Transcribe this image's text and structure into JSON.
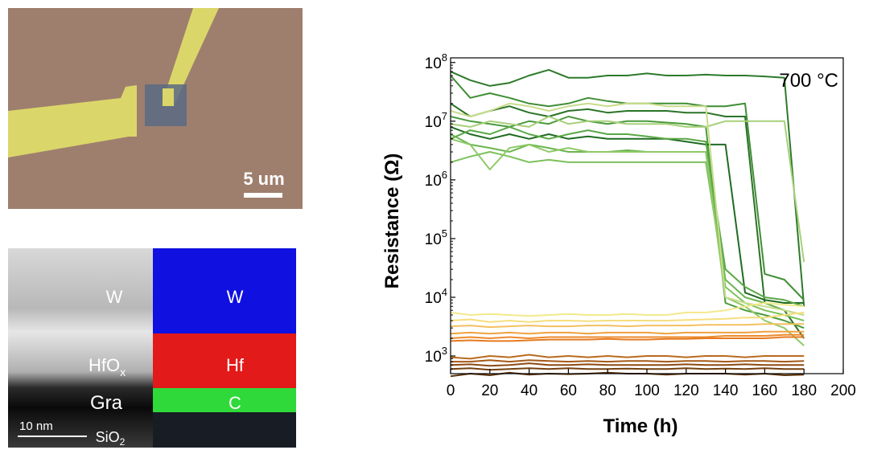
{
  "optical_image": {
    "scale_bar_label": "5 um",
    "colors": {
      "substrate": "#9e7f6e",
      "electrode": "#dbd66a",
      "flake": "#5b6a84"
    }
  },
  "tem_image": {
    "labels": {
      "w": "W",
      "hfox_main": "HfO",
      "hfox_sub": "x",
      "gra": "Gra",
      "sio2_main": "SiO",
      "sio2_sub": "2"
    },
    "scale_bar_label": "10 nm",
    "eds_labels": {
      "w": "W",
      "hf": "Hf",
      "c": "C"
    },
    "colors": {
      "w": "#1010e0",
      "hf": "#e21a1a",
      "c": "#2fd93a"
    }
  },
  "chart_data": {
    "type": "line",
    "annotation": "700 °C",
    "xlabel": "Time (h)",
    "ylabel": "Resistance (Ω)",
    "xlim": [
      0,
      200
    ],
    "ylim": [
      500,
      120000000
    ],
    "y_scale": "log",
    "grid": false,
    "x_ticks": [
      0,
      20,
      40,
      60,
      80,
      100,
      120,
      140,
      160,
      180,
      200
    ],
    "y_ticks": [
      {
        "value": 1000,
        "base": "10",
        "exp": "3"
      },
      {
        "value": 10000,
        "base": "10",
        "exp": "4"
      },
      {
        "value": 100000,
        "base": "10",
        "exp": "5"
      },
      {
        "value": 1000000,
        "base": "10",
        "exp": "6"
      },
      {
        "value": 10000000,
        "base": "10",
        "exp": "7"
      },
      {
        "value": 100000000,
        "base": "10",
        "exp": "8"
      }
    ],
    "series": [
      {
        "color": "#2d7a2a",
        "x": [
          0,
          10,
          20,
          30,
          40,
          50,
          60,
          70,
          80,
          90,
          100,
          110,
          120,
          130,
          140,
          150,
          160,
          170,
          180
        ],
        "y": [
          70000000,
          50000000,
          40000000,
          45000000,
          60000000,
          75000000,
          55000000,
          55000000,
          60000000,
          60000000,
          65000000,
          60000000,
          60000000,
          62000000,
          60000000,
          60000000,
          58000000,
          55000000,
          7000
        ]
      },
      {
        "color": "#3f8e35",
        "x": [
          0,
          10,
          20,
          30,
          40,
          50,
          60,
          70,
          80,
          90,
          100,
          110,
          120,
          130,
          140,
          150,
          160,
          170,
          180
        ],
        "y": [
          60000000,
          25000000,
          30000000,
          25000000,
          20000000,
          18000000,
          20000000,
          25000000,
          22000000,
          20000000,
          20000000,
          20000000,
          20000000,
          18000000,
          18000000,
          20000000,
          25000,
          20000,
          9000
        ]
      },
      {
        "color": "#2a7326",
        "x": [
          0,
          10,
          20,
          30,
          40,
          50,
          60,
          70,
          80,
          90,
          100,
          110,
          120,
          130,
          140,
          150,
          160,
          170,
          180
        ],
        "y": [
          20000000,
          12000000,
          15000000,
          18000000,
          14000000,
          12000000,
          15000000,
          16000000,
          14000000,
          15000000,
          15000000,
          15000000,
          14000000,
          14000000,
          12000000,
          12000000,
          8000,
          6000,
          2000
        ]
      },
      {
        "color": "#4a9a3c",
        "x": [
          0,
          10,
          20,
          30,
          40,
          50,
          60,
          70,
          80,
          90,
          100,
          110,
          120,
          130,
          140,
          150,
          160,
          170,
          180
        ],
        "y": [
          12000000,
          10000000,
          9000000,
          8000000,
          10000000,
          9000000,
          12000000,
          10000000,
          9000000,
          10000000,
          10000000,
          9500000,
          9000000,
          8000000,
          8000,
          6000,
          5000,
          4000,
          3000
        ]
      },
      {
        "color": "#1f6b22",
        "x": [
          0,
          10,
          20,
          30,
          40,
          50,
          60,
          70,
          80,
          90,
          100,
          110,
          120,
          130,
          140,
          150,
          160,
          170,
          180
        ],
        "y": [
          8000000,
          6000000,
          5000000,
          6000000,
          5000000,
          6000000,
          5000000,
          5500000,
          5000000,
          5000000,
          5000000,
          5000000,
          4500000,
          4000000,
          4000000,
          12000,
          9000,
          8000,
          8000
        ]
      },
      {
        "color": "#5aa846",
        "x": [
          0,
          10,
          20,
          30,
          40,
          50,
          60,
          70,
          80,
          90,
          100,
          110,
          120,
          130,
          140,
          150,
          160,
          170,
          180
        ],
        "y": [
          5000000,
          7000000,
          6000000,
          8000000,
          6000000,
          5000000,
          6000000,
          7000000,
          6000000,
          6000000,
          5500000,
          5000000,
          5000000,
          4500000,
          30000,
          15000,
          10000,
          9000,
          7000
        ]
      },
      {
        "color": "#6bb54f",
        "x": [
          0,
          10,
          20,
          30,
          40,
          50,
          60,
          70,
          80,
          90,
          100,
          110,
          120,
          130,
          140,
          150,
          160,
          170,
          180
        ],
        "y": [
          6000000,
          4000000,
          3500000,
          3000000,
          4000000,
          3500000,
          3000000,
          3000000,
          3000000,
          3200000,
          3000000,
          3000000,
          3000000,
          3000000,
          20000,
          10000,
          8000,
          6000,
          5000
        ]
      },
      {
        "color": "#7cc15a",
        "x": [
          0,
          10,
          20,
          30,
          40,
          50,
          60,
          70,
          80,
          90,
          100,
          110,
          120,
          130,
          140,
          150,
          160,
          170,
          180
        ],
        "y": [
          2000000,
          2500000,
          3000000,
          2500000,
          2000000,
          2200000,
          2000000,
          2000000,
          2000000,
          2000000,
          2000000,
          2000000,
          2000000,
          2000000,
          15000,
          8000,
          6000,
          5000,
          4000
        ]
      },
      {
        "color": "#8fc968",
        "x": [
          0,
          10,
          20,
          30,
          40,
          50,
          60,
          70,
          80,
          90,
          100,
          110,
          120,
          130,
          140,
          150,
          160,
          170,
          180
        ],
        "y": [
          5000000,
          4000000,
          1500000,
          3500000,
          4000000,
          3000000,
          3500000,
          3000000,
          3000000,
          3000000,
          3000000,
          3000000,
          3000000,
          3000000,
          10000,
          7000,
          4000,
          3000,
          1500
        ]
      },
      {
        "color": "#a7d07a",
        "x": [
          0,
          10,
          20,
          30,
          40,
          50,
          60,
          70,
          80,
          90,
          100,
          110,
          120,
          130,
          140,
          150,
          160,
          170,
          180
        ],
        "y": [
          9000000,
          8000000,
          10000000,
          9000000,
          8000000,
          12000000,
          9000000,
          10000000,
          10000000,
          9000000,
          9000000,
          9000000,
          8000000,
          8000000,
          10000000,
          10000000,
          10000000,
          10000000,
          40000
        ]
      },
      {
        "color": "#c9dc8c",
        "x": [
          0,
          10,
          20,
          30,
          40,
          50,
          60,
          70,
          80,
          90,
          100,
          110,
          120,
          130,
          140,
          150,
          160,
          170,
          180
        ],
        "y": [
          15000000,
          12000000,
          15000000,
          20000000,
          18000000,
          15000000,
          18000000,
          20000000,
          18000000,
          20000000,
          20000000,
          18000000,
          18000000,
          18000000,
          10000,
          8000,
          7000,
          6000,
          5000
        ]
      },
      {
        "color": "#f3e98c",
        "x": [
          0,
          10,
          20,
          30,
          40,
          50,
          60,
          70,
          80,
          90,
          100,
          110,
          120,
          130,
          140,
          150,
          160,
          170,
          180
        ],
        "y": [
          5500,
          5000,
          5200,
          5000,
          4800,
          5000,
          5200,
          5000,
          5000,
          5200,
          5000,
          5000,
          5500,
          5500,
          6000,
          7000,
          8000,
          7500,
          7000
        ]
      },
      {
        "color": "#f6de7e",
        "x": [
          0,
          10,
          20,
          30,
          40,
          50,
          60,
          70,
          80,
          90,
          100,
          110,
          120,
          130,
          140,
          150,
          160,
          170,
          180
        ],
        "y": [
          4000,
          4200,
          3800,
          4000,
          3800,
          4000,
          4000,
          3900,
          4000,
          4000,
          4000,
          4000,
          4100,
          4200,
          4300,
          4500,
          4500,
          5000,
          5500
        ]
      },
      {
        "color": "#f3c060",
        "x": [
          0,
          10,
          20,
          30,
          40,
          50,
          60,
          70,
          80,
          90,
          100,
          110,
          120,
          130,
          140,
          150,
          160,
          170,
          180
        ],
        "y": [
          3200,
          3300,
          3100,
          3200,
          3300,
          3200,
          3200,
          3300,
          3300,
          3200,
          3300,
          3300,
          3300,
          3400,
          3400,
          3400,
          3500,
          3500,
          3500
        ]
      },
      {
        "color": "#f0a040",
        "x": [
          0,
          10,
          20,
          30,
          40,
          50,
          60,
          70,
          80,
          90,
          100,
          110,
          120,
          130,
          140,
          150,
          160,
          170,
          180
        ],
        "y": [
          2400,
          2500,
          2400,
          2500,
          2400,
          2500,
          2500,
          2400,
          2500,
          2500,
          2500,
          2400,
          2500,
          2500,
          2500,
          2500,
          2600,
          2600,
          2600
        ]
      },
      {
        "color": "#ec8a2c",
        "x": [
          0,
          10,
          20,
          30,
          40,
          50,
          60,
          70,
          80,
          90,
          100,
          110,
          120,
          130,
          140,
          150,
          160,
          170,
          180
        ],
        "y": [
          2000,
          2100,
          2000,
          2100,
          2000,
          2100,
          2100,
          2100,
          2100,
          2100,
          2100,
          2100,
          2100,
          2100,
          2200,
          2200,
          2200,
          2300,
          2300
        ]
      },
      {
        "color": "#e67a20",
        "x": [
          0,
          10,
          20,
          30,
          40,
          50,
          60,
          70,
          80,
          90,
          100,
          110,
          120,
          130,
          140,
          150,
          160,
          170,
          180
        ],
        "y": [
          1800,
          1850,
          1800,
          1800,
          1850,
          1900,
          1900,
          1900,
          1950,
          1900,
          1900,
          1950,
          1950,
          2000,
          2000,
          2000,
          2000,
          2100,
          2100
        ]
      },
      {
        "color": "#b96a1e",
        "x": [
          0,
          10,
          20,
          30,
          40,
          50,
          60,
          70,
          80,
          90,
          100,
          110,
          120,
          130,
          140,
          150,
          160,
          170,
          180
        ],
        "y": [
          950,
          900,
          1000,
          950,
          1050,
          950,
          1000,
          950,
          1000,
          950,
          1000,
          1000,
          950,
          1000,
          1000,
          950,
          1000,
          1000,
          1000
        ]
      },
      {
        "color": "#a65a18",
        "x": [
          0,
          10,
          20,
          30,
          40,
          50,
          60,
          70,
          80,
          90,
          100,
          110,
          120,
          130,
          140,
          150,
          160,
          170,
          180
        ],
        "y": [
          800,
          800,
          850,
          800,
          850,
          820,
          800,
          820,
          800,
          820,
          820,
          800,
          820,
          820,
          800,
          820,
          820,
          800,
          820
        ]
      },
      {
        "color": "#8c4a12",
        "x": [
          0,
          10,
          20,
          30,
          40,
          50,
          60,
          70,
          80,
          90,
          100,
          110,
          120,
          130,
          140,
          150,
          160,
          170,
          180
        ],
        "y": [
          700,
          720,
          680,
          700,
          750,
          700,
          700,
          720,
          700,
          700,
          700,
          700,
          720,
          700,
          700,
          720,
          700,
          700,
          700
        ]
      },
      {
        "color": "#74400f",
        "x": [
          0,
          10,
          20,
          30,
          40,
          50,
          60,
          70,
          80,
          90,
          100,
          110,
          120,
          130,
          140,
          150,
          160,
          170,
          180
        ],
        "y": [
          600,
          620,
          580,
          600,
          620,
          600,
          620,
          600,
          600,
          610,
          600,
          600,
          620,
          600,
          610,
          600,
          620,
          600,
          600
        ]
      },
      {
        "color": "#5e340c",
        "x": [
          0,
          10,
          20,
          30,
          40,
          50,
          60,
          70,
          80,
          90,
          100,
          110,
          120,
          130,
          140,
          150,
          160,
          170,
          180
        ],
        "y": [
          450,
          500,
          470,
          520,
          480,
          500,
          490,
          500,
          520,
          500,
          500,
          480,
          500,
          500,
          500,
          480,
          500,
          470,
          480
        ]
      }
    ]
  }
}
